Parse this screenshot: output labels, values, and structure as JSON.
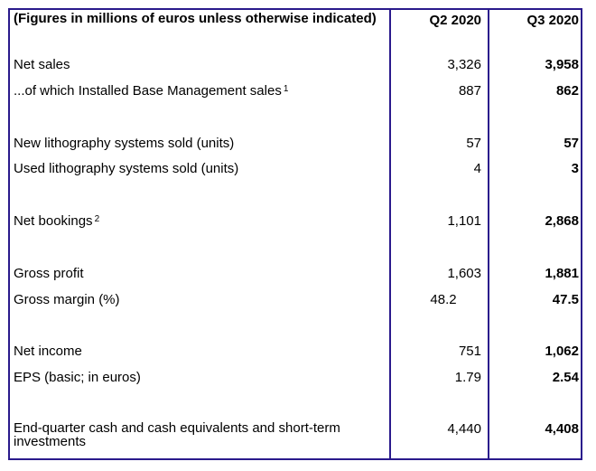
{
  "table": {
    "header": {
      "label": "(Figures in millions of euros unless otherwise indicated)",
      "col_q2": "Q2 2020",
      "col_q3": "Q3 2020"
    },
    "rows": [
      {
        "label": "Net sales",
        "footnote": "",
        "q2": "3,326",
        "q3": "3,958"
      },
      {
        "label": "...of which Installed Base Management sales",
        "footnote": "1",
        "q2": "887",
        "q3": "862"
      },
      {
        "label": "New lithography systems sold (units)",
        "footnote": "",
        "q2": "57",
        "q3": "57"
      },
      {
        "label": "Used lithography systems sold (units)",
        "footnote": "",
        "q2": "4",
        "q3": "3"
      },
      {
        "label": "Net bookings",
        "footnote": "2",
        "q2": "1,101",
        "q3": "2,868"
      },
      {
        "label": "Gross profit",
        "footnote": "",
        "q2": "1,603",
        "q3": "1,881"
      },
      {
        "label": "Gross margin (%)",
        "footnote": "",
        "q2": "48.2",
        "q3": "47.5"
      },
      {
        "label": "Net income",
        "footnote": "",
        "q2": "751",
        "q3": "1,062"
      },
      {
        "label": "EPS (basic; in euros)",
        "footnote": "",
        "q2": "1.79",
        "q3": "2.54"
      },
      {
        "label": "End-quarter cash and cash equivalents and short-term investments",
        "footnote": "",
        "q2": "4,440",
        "q3": "4,408"
      }
    ]
  },
  "colors": {
    "border": "#2a1a8c"
  }
}
